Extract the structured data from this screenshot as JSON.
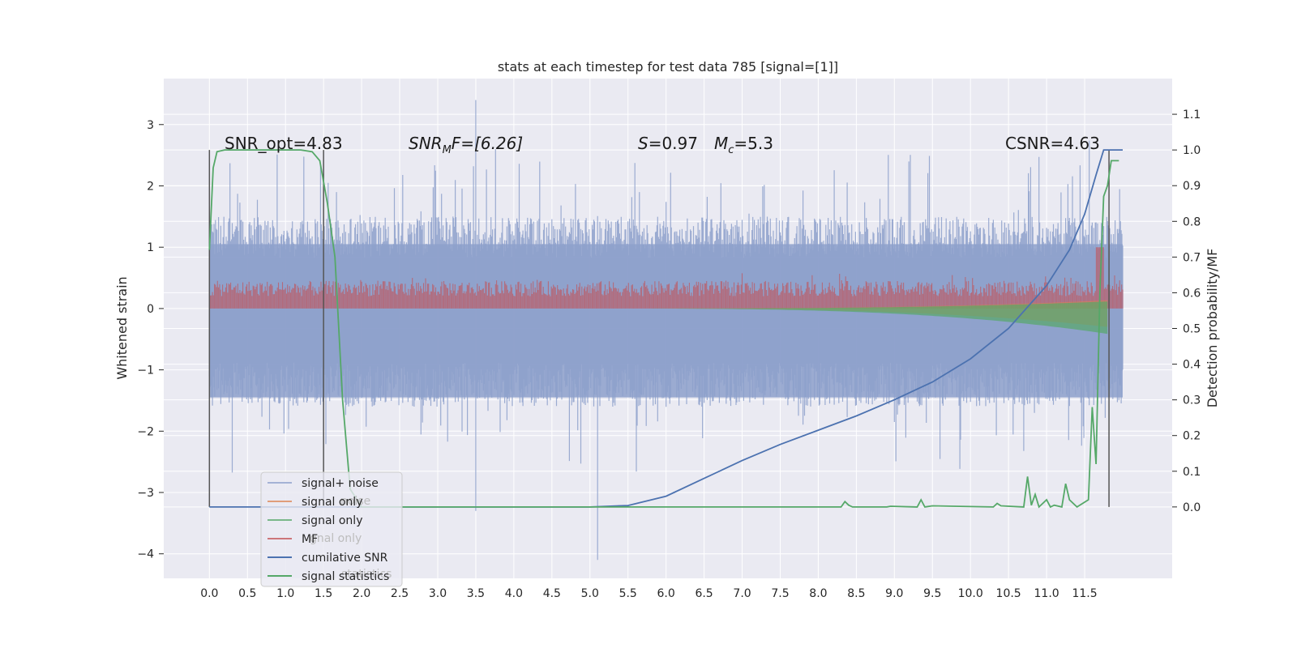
{
  "chart_data": {
    "type": "line",
    "title": "stats at each timestep for test data 785 [signal=[1]]",
    "xlabel": "",
    "ylabel": "Whitened strain",
    "ylabel_right": "Detection probability/MF",
    "xlim": [
      -0.6,
      12.65
    ],
    "ylim": [
      -4.4,
      3.75
    ],
    "ylim_right": [
      -0.2,
      1.2
    ],
    "x_ticks": [
      "0.0",
      "0.5",
      "1.0",
      "1.5",
      "2.0",
      "2.5",
      "3.0",
      "3.5",
      "4.0",
      "4.5",
      "5.0",
      "5.5",
      "6.0",
      "6.5",
      "7.0",
      "7.5",
      "8.0",
      "8.5",
      "9.0",
      "9.5",
      "10.0",
      "10.5",
      "11.0",
      "11.5"
    ],
    "y_ticks": [
      "3",
      "2",
      "1",
      "0",
      "−1",
      "−2",
      "−3",
      "−4"
    ],
    "y_ticks_right": [
      "1.1",
      "1.0",
      "0.9",
      "0.8",
      "0.7",
      "0.6",
      "0.5",
      "0.4",
      "0.3",
      "0.2",
      "0.1",
      "0.0"
    ],
    "grid": true,
    "annotations": {
      "snr_opt": "SNR_opt=4.83",
      "snr_mf_italic": "SNR",
      "snr_mf_sub": "M",
      "snr_mf_rest": "F=[6.26]",
      "s_italic": "S",
      "s_value": "=0.97",
      "mc_italic": "M",
      "mc_sub": "c",
      "mc_value": "=5.3",
      "csnr": "CSNR=4.63"
    },
    "vertical_markers": [
      0.0,
      1.5,
      11.82
    ],
    "series": [
      {
        "name": "signal+ noise",
        "color": "#8da0cb",
        "style": "noise",
        "axis": "left",
        "amplitude_range": [
          -1.6,
          1.5
        ],
        "peaks": [
          3.4,
          -4.1
        ]
      },
      {
        "name": "signal only",
        "color": "#dd8452",
        "style": "chirp",
        "axis": "left",
        "amplitude_end": 0.3
      },
      {
        "name": "signal only",
        "color": "#55a868",
        "style": "chirp",
        "axis": "left",
        "amplitude_end": 0.35
      },
      {
        "name": "MF",
        "color": "#c44e52",
        "style": "band",
        "axis": "left",
        "band": [
          0.0,
          0.45
        ]
      },
      {
        "name": "cumilative SNR",
        "color": "#4c72b0",
        "axis": "right",
        "x": [
          0,
          5.0,
          5.5,
          6.0,
          6.5,
          7.0,
          7.5,
          8.0,
          8.5,
          9.0,
          9.5,
          10.0,
          10.5,
          11.0,
          11.3,
          11.5,
          11.65,
          11.75,
          12.0
        ],
        "y": [
          0,
          0,
          0.004,
          0.03,
          0.08,
          0.13,
          0.175,
          0.215,
          0.255,
          0.3,
          0.35,
          0.415,
          0.5,
          0.62,
          0.72,
          0.82,
          0.93,
          1.0,
          1.0
        ]
      },
      {
        "name": "signal statistics",
        "color": "#55a868",
        "axis": "right",
        "x": [
          0,
          0.05,
          0.1,
          0.2,
          0.5,
          1.0,
          1.2,
          1.35,
          1.45,
          1.55,
          1.65,
          1.75,
          1.85,
          2.0,
          3.0,
          5.0,
          8.3,
          8.35,
          8.4,
          8.45,
          8.9,
          8.95,
          9.3,
          9.35,
          9.4,
          9.5,
          10.3,
          10.35,
          10.4,
          10.7,
          10.75,
          10.8,
          10.85,
          10.9,
          11.0,
          11.05,
          11.1,
          11.2,
          11.25,
          11.3,
          11.4,
          11.55,
          11.6,
          11.65,
          11.7,
          11.75,
          11.8,
          11.85,
          11.9,
          11.95
        ],
        "y": [
          0.72,
          0.95,
          0.995,
          1.0,
          1.0,
          1.0,
          1.0,
          0.995,
          0.97,
          0.85,
          0.7,
          0.3,
          0.05,
          0.0,
          0.0,
          0.0,
          0.0,
          0.015,
          0.005,
          0.0,
          0.0,
          0.002,
          0.0,
          0.02,
          0.0,
          0.003,
          0.0,
          0.01,
          0.003,
          0.0,
          0.085,
          0.005,
          0.035,
          0.0,
          0.02,
          0.0,
          0.005,
          0.0,
          0.065,
          0.02,
          0.0,
          0.02,
          0.28,
          0.12,
          0.6,
          0.87,
          0.9,
          0.97,
          0.97,
          0.97
        ]
      }
    ],
    "legend": {
      "placement": "lower-left",
      "entries": [
        {
          "label": "signal+ noise",
          "color": "#8da0cb"
        },
        {
          "label": "signal only",
          "color": "#dd8452"
        },
        {
          "label": "signal only",
          "color": "#55a868"
        },
        {
          "label": "MF",
          "color": "#c44e52"
        },
        {
          "label": "cumilative SNR",
          "color": "#4c72b0"
        },
        {
          "label": "signal statistics",
          "color": "#55a868"
        }
      ],
      "ghost_labels": [
        "noise",
        "gnal only",
        "statistics"
      ]
    },
    "colors": {
      "plot_bg": "#eaeaf2",
      "grid": "#ffffff",
      "noise": "#8da0cb",
      "mf": "#c44e52",
      "green": "#55a868",
      "blue": "#4c72b0",
      "marker": "#555555"
    }
  }
}
